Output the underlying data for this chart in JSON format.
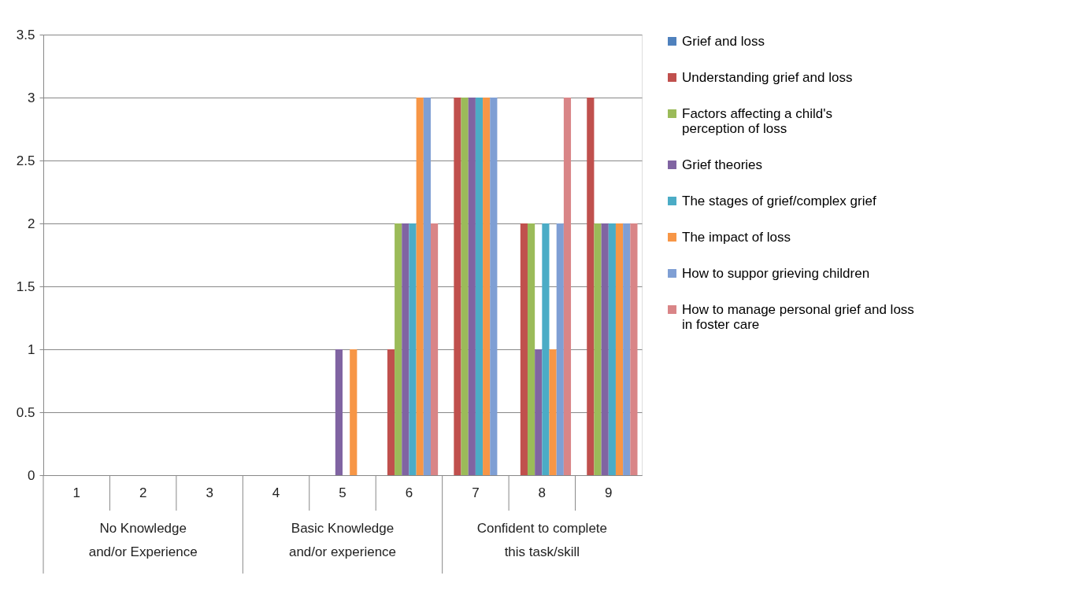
{
  "chart_data": {
    "type": "bar",
    "categories": [
      "1",
      "2",
      "3",
      "4",
      "5",
      "6",
      "7",
      "8",
      "9"
    ],
    "series": [
      {
        "name": "Grief and loss",
        "color": "#4f81bd",
        "values": [
          0,
          0,
          0,
          0,
          0,
          0,
          0,
          0,
          0
        ]
      },
      {
        "name": "Understanding grief and loss",
        "color": "#c0504d",
        "values": [
          0,
          0,
          0,
          0,
          0,
          1,
          3,
          2,
          3
        ]
      },
      {
        "name": "Factors affecting a child's perception of loss",
        "color": "#9bbb59",
        "values": [
          0,
          0,
          0,
          0,
          0,
          2,
          3,
          2,
          2
        ]
      },
      {
        "name": "Grief theories",
        "color": "#8064a2",
        "values": [
          0,
          0,
          0,
          0,
          1,
          2,
          3,
          1,
          2
        ]
      },
      {
        "name": "The stages of grief/complex grief",
        "color": "#4bacc6",
        "values": [
          0,
          0,
          0,
          0,
          0,
          2,
          3,
          2,
          2
        ]
      },
      {
        "name": "The impact of loss",
        "color": "#f79646",
        "values": [
          0,
          0,
          0,
          0,
          1,
          3,
          3,
          1,
          2
        ]
      },
      {
        "name": "How to suppor grieving children",
        "color": "#7f9fd4",
        "values": [
          0,
          0,
          0,
          0,
          0,
          3,
          3,
          2,
          2
        ]
      },
      {
        "name": "How to manage personal grief and loss in foster care",
        "color": "#d98587",
        "values": [
          0,
          0,
          0,
          0,
          0,
          2,
          0,
          3,
          2
        ]
      }
    ],
    "annotations": [
      "No Knowledge and/or Experience",
      "Basic Knowledge and/or experience",
      "Confident to complete this task/skill"
    ],
    "ylim": [
      0,
      3.5
    ],
    "yticks": [
      0,
      0.5,
      1,
      1.5,
      2,
      2.5,
      3,
      3.5
    ],
    "grid": "y",
    "legend": "right"
  }
}
